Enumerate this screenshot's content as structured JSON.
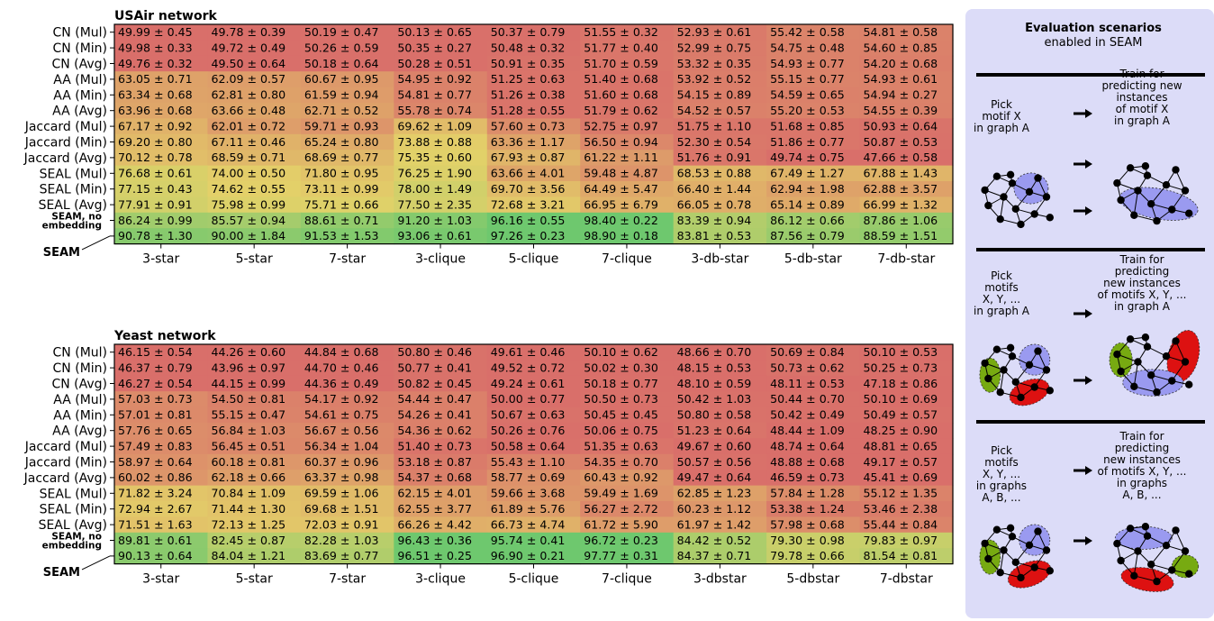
{
  "chart_data": [
    {
      "type": "heatmap",
      "title": "USAir network",
      "columns": [
        "3-star",
        "5-star",
        "7-star",
        "3-clique",
        "5-clique",
        "7-clique",
        "3-db-star",
        "5-db-star",
        "7-db-star"
      ],
      "rows": [
        "CN (Mul)",
        "CN (Min)",
        "CN (Avg)",
        "AA (Mul)",
        "AA (Min)",
        "AA (Avg)",
        "Jaccard (Mul)",
        "Jaccard (Min)",
        "Jaccard (Avg)",
        "SEAL (Mul)",
        "SEAL (Min)",
        "SEAL (Avg)",
        "SEAM, no embedding",
        "SEAM"
      ],
      "row_labels": [
        [
          "CN (Mul)"
        ],
        [
          "CN (Min)"
        ],
        [
          "CN (Avg)"
        ],
        [
          "AA (Mul)"
        ],
        [
          "AA (Min)"
        ],
        [
          "AA (Avg)"
        ],
        [
          "Jaccard (Mul)"
        ],
        [
          "Jaccard (Min)"
        ],
        [
          "Jaccard (Avg)"
        ],
        [
          "SEAL (Mul)"
        ],
        [
          "SEAL (Min)"
        ],
        [
          "SEAL (Avg)"
        ],
        [
          "SEAM, no",
          "embedding"
        ],
        [
          "SEAM"
        ]
      ],
      "cells": [
        [
          "49.99 ± 0.45",
          "49.78 ± 0.39",
          "50.19 ± 0.47",
          "50.13 ± 0.65",
          "50.37 ± 0.79",
          "51.55 ± 0.32",
          "52.93 ± 0.61",
          "55.42 ± 0.58",
          "54.81 ± 0.58"
        ],
        [
          "49.98 ± 0.33",
          "49.72 ± 0.49",
          "50.26 ± 0.59",
          "50.35 ± 0.27",
          "50.48 ± 0.32",
          "51.77 ± 0.40",
          "52.99 ± 0.75",
          "54.75 ± 0.48",
          "54.60 ± 0.85"
        ],
        [
          "49.76 ± 0.32",
          "49.50 ± 0.64",
          "50.18 ± 0.64",
          "50.28 ± 0.51",
          "50.91 ± 0.35",
          "51.70 ± 0.59",
          "53.32 ± 0.35",
          "54.93 ± 0.77",
          "54.20 ± 0.68"
        ],
        [
          "63.05 ± 0.71",
          "62.09 ± 0.57",
          "60.67 ± 0.95",
          "54.95 ± 0.92",
          "51.25 ± 0.63",
          "51.40 ± 0.68",
          "53.92 ± 0.52",
          "55.15 ± 0.77",
          "54.93 ± 0.61"
        ],
        [
          "63.34 ± 0.68",
          "62.81 ± 0.80",
          "61.59 ± 0.94",
          "54.81 ± 0.77",
          "51.26 ± 0.38",
          "51.60 ± 0.68",
          "54.15 ± 0.89",
          "54.59 ± 0.65",
          "54.94 ± 0.27"
        ],
        [
          "63.96 ± 0.68",
          "63.66 ± 0.48",
          "62.71 ± 0.52",
          "55.78 ± 0.74",
          "51.28 ± 0.55",
          "51.79 ± 0.62",
          "54.52 ± 0.57",
          "55.20 ± 0.53",
          "54.55 ± 0.39"
        ],
        [
          "67.17 ± 0.92",
          "62.01 ± 0.72",
          "59.71 ± 0.93",
          "69.62 ± 1.09",
          "57.60 ± 0.73",
          "52.75 ± 0.97",
          "51.75 ± 1.10",
          "51.68 ± 0.85",
          "50.93 ± 0.64"
        ],
        [
          "69.20 ± 0.80",
          "67.11 ± 0.46",
          "65.24 ± 0.80",
          "73.88 ± 0.88",
          "63.36 ± 1.17",
          "56.50 ± 0.94",
          "52.30 ± 0.54",
          "51.86 ± 0.77",
          "50.87 ± 0.53"
        ],
        [
          "70.12 ± 0.78",
          "68.59 ± 0.71",
          "68.69 ± 0.77",
          "75.35 ± 0.60",
          "67.93 ± 0.87",
          "61.22 ± 1.11",
          "51.76 ± 0.91",
          "49.74 ± 0.75",
          "47.66 ± 0.58"
        ],
        [
          "76.68 ± 0.61",
          "74.00 ± 0.50",
          "71.80 ± 0.95",
          "76.25 ± 1.90",
          "63.66 ± 4.01",
          "59.48 ± 4.87",
          "68.53 ± 0.88",
          "67.49 ± 1.27",
          "67.88 ± 1.43"
        ],
        [
          "77.15 ± 0.43",
          "74.62 ± 0.55",
          "73.11 ± 0.99",
          "78.00 ± 1.49",
          "69.70 ± 3.56",
          "64.49 ± 5.47",
          "66.40 ± 1.44",
          "62.94 ± 1.98",
          "62.88 ± 3.57"
        ],
        [
          "77.91 ± 0.91",
          "75.98 ± 0.99",
          "75.71 ± 0.66",
          "77.50 ± 2.35",
          "72.68 ± 3.21",
          "66.95 ± 6.79",
          "66.05 ± 0.78",
          "65.14 ± 0.89",
          "66.99 ± 1.32"
        ],
        [
          "86.24 ± 0.99",
          "85.57 ± 0.94",
          "88.61 ± 0.71",
          "91.20 ± 1.03",
          "96.16 ± 0.55",
          "98.40 ± 0.22",
          "83.39 ± 0.94",
          "86.12 ± 0.66",
          "87.86 ± 1.06"
        ],
        [
          "90.78 ± 1.30",
          "90.00 ± 1.84",
          "91.53 ± 1.53",
          "93.06 ± 0.61",
          "97.26 ± 0.23",
          "98.90 ± 0.18",
          "83.81 ± 0.53",
          "87.56 ± 0.79",
          "88.59 ± 1.51"
        ]
      ]
    },
    {
      "type": "heatmap",
      "title": "Yeast network",
      "columns": [
        "3-star",
        "5-star",
        "7-star",
        "3-clique",
        "5-clique",
        "7-clique",
        "3-dbstar",
        "5-dbstar",
        "7-dbstar"
      ],
      "rows": [
        "CN (Mul)",
        "CN (Min)",
        "CN (Avg)",
        "AA (Mul)",
        "AA (Min)",
        "AA (Avg)",
        "Jaccard (Mul)",
        "Jaccard (Min)",
        "Jaccard (Avg)",
        "SEAL (Mul)",
        "SEAL (Min)",
        "SEAL (Avg)",
        "SEAM, no embedding",
        "SEAM"
      ],
      "row_labels": [
        [
          "CN (Mul)"
        ],
        [
          "CN (Min)"
        ],
        [
          "CN (Avg)"
        ],
        [
          "AA (Mul)"
        ],
        [
          "AA (Min)"
        ],
        [
          "AA (Avg)"
        ],
        [
          "Jaccard (Mul)"
        ],
        [
          "Jaccard (Min)"
        ],
        [
          "Jaccard (Avg)"
        ],
        [
          "SEAL (Mul)"
        ],
        [
          "SEAL (Min)"
        ],
        [
          "SEAL (Avg)"
        ],
        [
          "SEAM, no",
          "embedding"
        ],
        [
          "SEAM"
        ]
      ],
      "cells": [
        [
          "46.15 ± 0.54",
          "44.26 ± 0.60",
          "44.84 ± 0.68",
          "50.80 ± 0.46",
          "49.61 ± 0.46",
          "50.10 ± 0.62",
          "48.66 ± 0.70",
          "50.69 ± 0.84",
          "50.10 ± 0.53"
        ],
        [
          "46.37 ± 0.79",
          "43.96 ± 0.97",
          "44.70 ± 0.46",
          "50.77 ± 0.41",
          "49.52 ± 0.72",
          "50.02 ± 0.30",
          "48.15 ± 0.53",
          "50.73 ± 0.62",
          "50.25 ± 0.73"
        ],
        [
          "46.27 ± 0.54",
          "44.15 ± 0.99",
          "44.36 ± 0.49",
          "50.82 ± 0.45",
          "49.24 ± 0.61",
          "50.18 ± 0.77",
          "48.10 ± 0.59",
          "48.11 ± 0.53",
          "47.18 ± 0.86"
        ],
        [
          "57.03 ± 0.73",
          "54.50 ± 0.81",
          "54.17 ± 0.92",
          "54.44 ± 0.47",
          "50.00 ± 0.77",
          "50.50 ± 0.73",
          "50.42 ± 1.03",
          "50.44 ± 0.70",
          "50.10 ± 0.69"
        ],
        [
          "57.01 ± 0.81",
          "55.15 ± 0.47",
          "54.61 ± 0.75",
          "54.26 ± 0.41",
          "50.67 ± 0.63",
          "50.45 ± 0.45",
          "50.80 ± 0.58",
          "50.42 ± 0.49",
          "50.49 ± 0.57"
        ],
        [
          "57.76 ± 0.65",
          "56.84 ± 1.03",
          "56.67 ± 0.56",
          "54.36 ± 0.62",
          "50.26 ± 0.76",
          "50.06 ± 0.75",
          "51.23 ± 0.64",
          "48.44 ± 1.09",
          "48.25 ± 0.90"
        ],
        [
          "57.49 ± 0.83",
          "56.45 ± 0.51",
          "56.34 ± 1.04",
          "51.40 ± 0.73",
          "50.58 ± 0.64",
          "51.35 ± 0.63",
          "49.67 ± 0.60",
          "48.74 ± 0.64",
          "48.81 ± 0.65"
        ],
        [
          "58.97 ± 0.64",
          "60.18 ± 0.81",
          "60.37 ± 0.96",
          "53.18 ± 0.87",
          "55.43 ± 1.10",
          "54.35 ± 0.70",
          "50.57 ± 0.56",
          "48.88 ± 0.68",
          "49.17 ± 0.57"
        ],
        [
          "60.02 ± 0.86",
          "62.18 ± 0.66",
          "63.37 ± 0.98",
          "54.37 ± 0.68",
          "58.77 ± 0.69",
          "60.43 ± 0.92",
          "49.47 ± 0.64",
          "46.59 ± 0.73",
          "45.41 ± 0.69"
        ],
        [
          "71.82 ± 3.24",
          "70.84 ± 1.09",
          "69.59 ± 1.06",
          "62.15 ± 4.01",
          "59.66 ± 3.68",
          "59.49 ± 1.69",
          "62.85 ± 1.23",
          "57.84 ± 1.28",
          "55.12 ± 1.35"
        ],
        [
          "72.94 ± 2.67",
          "71.44 ± 1.30",
          "69.68 ± 1.51",
          "62.55 ± 3.77",
          "61.89 ± 5.76",
          "56.27 ± 2.72",
          "60.23 ± 1.12",
          "53.38 ± 1.24",
          "53.46 ± 2.38"
        ],
        [
          "71.51 ± 1.63",
          "72.13 ± 1.25",
          "72.03 ± 0.91",
          "66.26 ± 4.42",
          "66.73 ± 4.74",
          "61.72 ± 5.90",
          "61.97 ± 1.42",
          "57.98 ± 0.68",
          "55.44 ± 0.84"
        ],
        [
          "89.81 ± 0.61",
          "82.45 ± 0.87",
          "82.28 ± 1.03",
          "96.43 ± 0.36",
          "95.74 ± 0.41",
          "96.72 ± 0.23",
          "84.42 ± 0.52",
          "79.30 ± 0.98",
          "79.83 ± 0.97"
        ],
        [
          "90.13 ± 0.64",
          "84.04 ± 1.21",
          "83.69 ± 0.77",
          "96.51 ± 0.25",
          "96.90 ± 0.21",
          "97.77 ± 0.31",
          "84.37 ± 0.71",
          "79.78 ± 0.66",
          "81.54 ± 0.81"
        ]
      ]
    }
  ],
  "colors": {
    "low": "#d96f6a",
    "mid": "#e3d169",
    "high": "#6ec86e",
    "panel_bg": "#dcdcf8",
    "motif_x": "#9a9af0",
    "motif_y": "#dd1111",
    "motif_z": "#77aa11"
  },
  "panel": {
    "title": "Evaluation scenarios",
    "subtitle": "enabled in SEAM",
    "scenarios": [
      {
        "left": [
          "Pick",
          "motif X",
          "in graph A"
        ],
        "right": [
          "Train for",
          "predicting new",
          "instances",
          "of motif X",
          "in graph A"
        ]
      },
      {
        "left": [
          "Pick",
          "motifs",
          "X, Y, ...",
          "in graph A"
        ],
        "right": [
          "Train for",
          "predicting",
          "new instances",
          "of motifs X, Y, ...",
          "in graph A"
        ]
      },
      {
        "left": [
          "Pick",
          "motifs",
          "X, Y, ...",
          "in graphs",
          "A, B, ..."
        ],
        "right": [
          "Train for",
          "predicting",
          "new instances",
          "of motifs X, Y, ...",
          "in graphs",
          "A, B, ..."
        ]
      }
    ]
  }
}
